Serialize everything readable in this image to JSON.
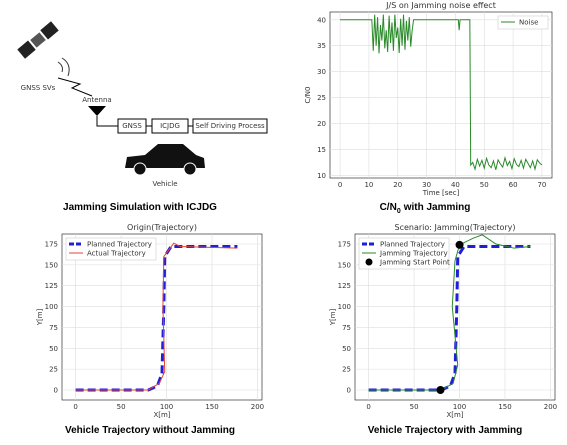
{
  "diagram": {
    "satellite_label": "GNSS SVs",
    "antenna_label": "Antenna",
    "boxes": [
      "GNSS",
      "ICJDG",
      "Self Driving Process"
    ],
    "vehicle_label": "Vehicle",
    "caption": "Jamming Simulation with ICJDG"
  },
  "chart_data": [
    {
      "type": "line",
      "title": "J/S on Jamming noise effect",
      "xlabel": "Time [sec]",
      "ylabel": "C/N0",
      "caption": [
        "C/N",
        "0",
        "with Jamming"
      ],
      "xlim": [
        -3.5,
        73.5
      ],
      "ylim": [
        9.5,
        41.5
      ],
      "xticks": [
        0,
        10,
        20,
        30,
        40,
        50,
        60,
        70
      ],
      "yticks": [
        10,
        15,
        20,
        25,
        30,
        35,
        40
      ],
      "grid": true,
      "legend": "upper right",
      "series": [
        {
          "name": "Noise",
          "color": "#2a8a2a",
          "style": "solid",
          "x": [
            0,
            11,
            11.5,
            12,
            12.5,
            13,
            13.5,
            14,
            14.5,
            15,
            15.5,
            16,
            16.5,
            17,
            17.5,
            18,
            18.5,
            19,
            19.5,
            20,
            20.5,
            21,
            21.5,
            22,
            22.5,
            23,
            23.5,
            24,
            24.5,
            25,
            25.5,
            41,
            41.3,
            41.6,
            42,
            45,
            45.3,
            46,
            46.8,
            47.6,
            48.4,
            49.2,
            50,
            50.8,
            51.6,
            52.4,
            53.2,
            54,
            54.8,
            55.6,
            56.4,
            57.2,
            58,
            58.8,
            59.6,
            60.4,
            61.2,
            62,
            62.8,
            63.6,
            64.4,
            65.2,
            66,
            66.8,
            67.6,
            68.4,
            69.2,
            70
          ],
          "values": [
            40,
            40,
            34,
            41,
            35,
            40.5,
            33.5,
            39,
            36,
            41,
            34.5,
            38,
            33.8,
            40.8,
            35.5,
            39.5,
            34,
            41,
            36.5,
            38.5,
            33.6,
            40.2,
            35,
            41,
            34.2,
            39.8,
            36,
            40.5,
            34.8,
            38,
            40,
            40,
            38,
            40,
            40,
            40,
            12,
            12.5,
            11.2,
            13.1,
            11.8,
            12.9,
            11.4,
            13.3,
            12,
            11.5,
            12.8,
            11.1,
            13,
            12.2,
            11.6,
            13.4,
            11.9,
            12.7,
            11.3,
            13.2,
            12.1,
            11.7,
            12.9,
            11.4,
            13.1,
            12.3,
            11.5,
            12.8,
            11.2,
            13,
            12.4,
            12
          ]
        }
      ]
    },
    {
      "type": "line",
      "title": "Origin(Trajectory)",
      "xlabel": "X[m]",
      "ylabel": "Y[m]",
      "caption": "Vehicle Trajectory without Jamming",
      "xlim": [
        -15,
        205
      ],
      "ylim": [
        -12,
        187
      ],
      "xticks": [
        0,
        50,
        100,
        150,
        200
      ],
      "yticks": [
        0,
        25,
        50,
        75,
        100,
        125,
        150,
        175
      ],
      "grid": true,
      "legend": "upper left",
      "series": [
        {
          "name": "Planned Trajectory",
          "color": "#1f1fd6",
          "style": "dashed",
          "x": [
            0,
            80,
            90,
            95,
            97,
            98,
            105,
            120,
            178
          ],
          "values": [
            0,
            0,
            5,
            20,
            100,
            160,
            172,
            172,
            172
          ]
        },
        {
          "name": "Actual Trajectory",
          "color": "#e8423a",
          "style": "solid",
          "x": [
            0,
            80,
            92,
            98,
            96,
            97,
            108,
            115,
            178
          ],
          "values": [
            0,
            0,
            8,
            22,
            100,
            160,
            176,
            172,
            170
          ]
        }
      ]
    },
    {
      "type": "line",
      "title": "Scenario: Jamming(Trajectory)",
      "xlabel": "X[m]",
      "ylabel": "Y[m]",
      "caption": "Vehicle Trajectory with Jamming",
      "xlim": [
        -15,
        205
      ],
      "ylim": [
        -12,
        187
      ],
      "xticks": [
        0,
        50,
        100,
        150,
        200
      ],
      "yticks": [
        0,
        25,
        50,
        75,
        100,
        125,
        150,
        175
      ],
      "grid": true,
      "legend": "upper left",
      "series": [
        {
          "name": "Planned Trajectory",
          "color": "#1f1fd6",
          "style": "dashed",
          "x": [
            0,
            80,
            90,
            95,
            97,
            98,
            105,
            120,
            178
          ],
          "values": [
            0,
            0,
            5,
            20,
            100,
            160,
            172,
            172,
            172
          ]
        },
        {
          "name": "Jamming Trajectory",
          "color": "#2a8a2a",
          "style": "solid",
          "x": [
            0,
            80,
            93,
            98,
            92,
            95,
            100,
            115,
            125,
            140,
            160,
            178
          ],
          "values": [
            0,
            0,
            8,
            30,
            100,
            155,
            174,
            182,
            186,
            175,
            170,
            172
          ]
        },
        {
          "name": "Jamming Start Point",
          "color": "#000000",
          "style": "marker",
          "x": [
            79,
            100
          ],
          "values": [
            0,
            174
          ]
        }
      ]
    }
  ]
}
